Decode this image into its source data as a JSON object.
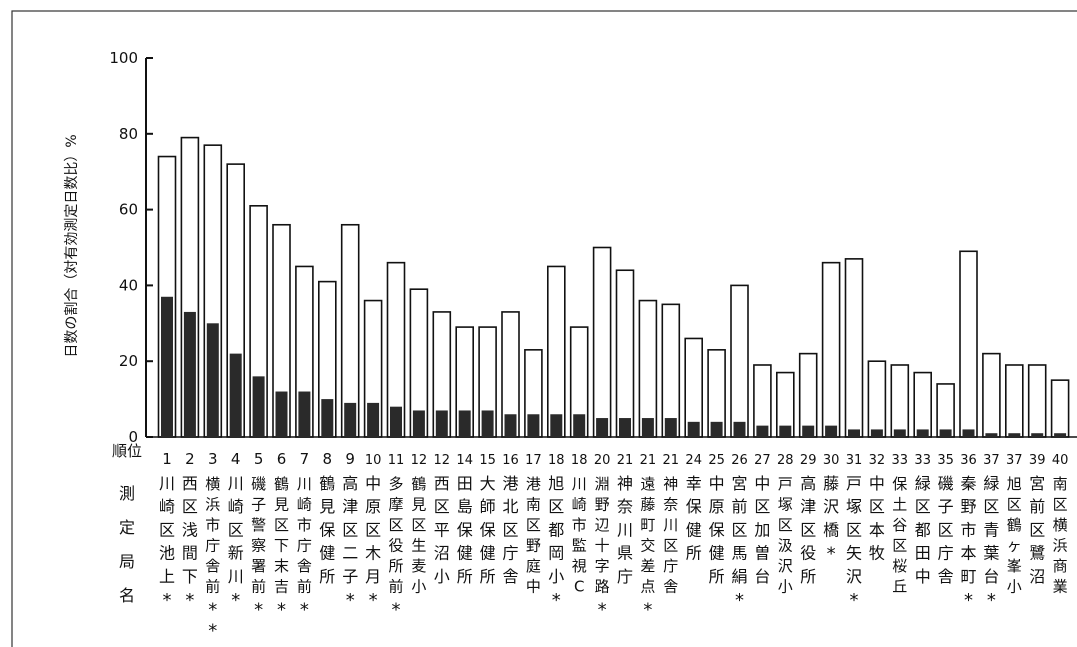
{
  "chart_data": {
    "type": "bar",
    "ylabel": "日数の割合（対有効測定日数比）%",
    "ylim": [
      0,
      100
    ],
    "yticks": [
      0,
      20,
      40,
      60,
      80,
      100
    ],
    "grid": false,
    "rank_header": "順位",
    "station_header": "測定局名",
    "series": [
      {
        "name": "total",
        "values": [
          74,
          79,
          77,
          72,
          61,
          56,
          45,
          41,
          56,
          36,
          46,
          39,
          33,
          29,
          29,
          33,
          23,
          45,
          29,
          50,
          44,
          36,
          35,
          26,
          23,
          40,
          19,
          17,
          22,
          46,
          47,
          20,
          19,
          17,
          14,
          49,
          22,
          19,
          19,
          15
        ]
      },
      {
        "name": "dark",
        "values": [
          37,
          33,
          30,
          22,
          16,
          12,
          12,
          10,
          9,
          9,
          8,
          7,
          7,
          7,
          7,
          6,
          6,
          6,
          6,
          5,
          5,
          5,
          5,
          4,
          4,
          4,
          3,
          3,
          3,
          3,
          2,
          2,
          2,
          2,
          2,
          2,
          1,
          1,
          1,
          1
        ]
      }
    ],
    "ranks": [
      "1",
      "2",
      "3",
      "4",
      "5",
      "6",
      "7",
      "8",
      "9",
      "10",
      "11",
      "12",
      "12",
      "14",
      "15",
      "16",
      "17",
      "18",
      "18",
      "20",
      "21",
      "21",
      "21",
      "24",
      "25",
      "26",
      "27",
      "28",
      "29",
      "30",
      "31",
      "32",
      "33",
      "33",
      "35",
      "36",
      "37",
      "37",
      "39",
      "40"
    ],
    "stations": [
      "川崎区池上",
      "西区浅間下",
      "横浜市庁舎前",
      "川崎区新川",
      "磯子警察署前",
      "鶴見区下末吉",
      "川崎市庁舎前",
      "鶴見保健所",
      "高津区二子",
      "中原区木月",
      "多摩区役所前",
      "鶴見区生麦小",
      "西区平沼小",
      "田島保健所",
      "大師保健所",
      "港北区庁舎",
      "港南区野庭中",
      "旭区都岡小",
      "川崎市監視C",
      "淵野辺十字路",
      "神奈川県庁",
      "遠藤町交差点",
      "神奈川区庁舎",
      "幸保健所",
      "中原保健所",
      "宮前区馬絹",
      "中区加曽台",
      "戸塚区汲沢小",
      "高津区役所",
      "藤沢橋",
      "戸塚区矢沢",
      "中区本牧",
      "保土谷区桜丘",
      "緑区都田中",
      "磯子区庁舎",
      "秦野市本町",
      "緑区青葉台",
      "旭区鶴ヶ峯小",
      "宮前区鷺沼",
      "南区横浜商業"
    ],
    "marks": [
      "*",
      "*",
      "**",
      "*",
      "*",
      "*",
      "*",
      "",
      "*",
      "*",
      "*",
      "",
      "",
      "",
      "",
      "",
      "",
      "*",
      "",
      "*",
      "",
      "*",
      "",
      "",
      "",
      "*",
      "",
      "",
      "",
      "*",
      "*",
      "",
      "",
      "",
      "",
      "*",
      "*",
      "",
      "",
      ""
    ]
  }
}
